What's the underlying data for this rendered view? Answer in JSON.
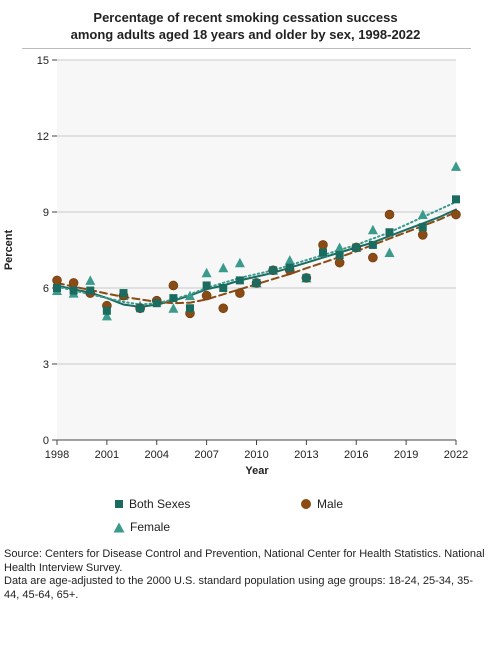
{
  "title_line1": "Percentage of recent smoking cessation success",
  "title_line2": "among adults aged 18 years and older by sex, 1998-2022",
  "chart_data": {
    "type": "scatter",
    "title": "Percentage of recent smoking cessation success among adults aged 18 years and older by sex, 1998-2022",
    "xlabel": "Year",
    "ylabel": "Percent",
    "xlim": [
      1998,
      2022
    ],
    "ylim": [
      0,
      15
    ],
    "x_ticks": [
      1998,
      2001,
      2004,
      2007,
      2010,
      2013,
      2016,
      2019,
      2022
    ],
    "y_ticks": [
      0,
      3,
      6,
      9,
      12,
      15
    ],
    "grid": true,
    "legend_position": "bottom",
    "series": [
      {
        "name": "Both Sexes",
        "marker": "square",
        "color": "#1a6b60",
        "trend_style": "solid",
        "x": [
          1998,
          1999,
          2000,
          2001,
          2002,
          2003,
          2004,
          2005,
          2006,
          2007,
          2008,
          2009,
          2010,
          2011,
          2012,
          2013,
          2014,
          2015,
          2016,
          2017,
          2018,
          2020,
          2022
        ],
        "values": [
          6.0,
          5.9,
          5.9,
          5.1,
          5.8,
          5.2,
          5.4,
          5.6,
          5.2,
          6.1,
          6.0,
          6.3,
          6.2,
          6.7,
          6.8,
          6.4,
          7.4,
          7.3,
          7.6,
          7.7,
          8.2,
          8.4,
          9.5
        ],
        "trend": [
          [
            1998,
            6.1
          ],
          [
            1999,
            5.95
          ],
          [
            2000,
            5.82
          ],
          [
            2001,
            5.6
          ],
          [
            2002,
            5.35
          ],
          [
            2003,
            5.25
          ],
          [
            2004,
            5.35
          ],
          [
            2005,
            5.5
          ],
          [
            2006,
            5.7
          ],
          [
            2007,
            5.95
          ],
          [
            2008,
            6.1
          ],
          [
            2009,
            6.3
          ],
          [
            2010,
            6.45
          ],
          [
            2011,
            6.6
          ],
          [
            2012,
            6.8
          ],
          [
            2013,
            7.0
          ],
          [
            2014,
            7.2
          ],
          [
            2015,
            7.4
          ],
          [
            2016,
            7.6
          ],
          [
            2017,
            7.8
          ],
          [
            2018,
            8.05
          ],
          [
            2019,
            8.3
          ],
          [
            2020,
            8.55
          ],
          [
            2021,
            8.8
          ],
          [
            2022,
            9.1
          ]
        ]
      },
      {
        "name": "Male",
        "marker": "circle",
        "color": "#8a4b14",
        "trend_style": "dashed",
        "x": [
          1998,
          1999,
          2000,
          2001,
          2002,
          2003,
          2004,
          2005,
          2006,
          2007,
          2008,
          2009,
          2010,
          2011,
          2012,
          2013,
          2014,
          2015,
          2016,
          2017,
          2018,
          2020,
          2022
        ],
        "values": [
          6.3,
          6.2,
          5.8,
          5.3,
          5.7,
          5.2,
          5.5,
          6.1,
          5.0,
          5.7,
          5.2,
          5.8,
          6.2,
          6.7,
          6.7,
          6.4,
          7.7,
          7.0,
          7.6,
          7.2,
          8.9,
          8.1,
          8.9
        ],
        "trend": [
          [
            1998,
            6.2
          ],
          [
            1999,
            6.05
          ],
          [
            2000,
            5.92
          ],
          [
            2001,
            5.78
          ],
          [
            2002,
            5.65
          ],
          [
            2003,
            5.55
          ],
          [
            2004,
            5.45
          ],
          [
            2005,
            5.4
          ],
          [
            2006,
            5.42
          ],
          [
            2007,
            5.55
          ],
          [
            2008,
            5.75
          ],
          [
            2009,
            5.95
          ],
          [
            2010,
            6.15
          ],
          [
            2011,
            6.35
          ],
          [
            2012,
            6.55
          ],
          [
            2013,
            6.78
          ],
          [
            2014,
            7.0
          ],
          [
            2015,
            7.22
          ],
          [
            2016,
            7.45
          ],
          [
            2017,
            7.7
          ],
          [
            2018,
            7.95
          ],
          [
            2019,
            8.2
          ],
          [
            2020,
            8.45
          ],
          [
            2021,
            8.7
          ],
          [
            2022,
            9.0
          ]
        ]
      },
      {
        "name": "Female",
        "marker": "triangle",
        "color": "#3a9a8c",
        "trend_style": "dotted",
        "x": [
          1998,
          1999,
          2000,
          2001,
          2002,
          2003,
          2004,
          2005,
          2006,
          2007,
          2008,
          2009,
          2010,
          2011,
          2012,
          2013,
          2014,
          2015,
          2016,
          2017,
          2018,
          2020,
          2022
        ],
        "values": [
          5.9,
          5.8,
          6.3,
          4.9,
          5.7,
          5.3,
          5.5,
          5.2,
          5.7,
          6.6,
          6.8,
          7.0,
          6.2,
          6.7,
          7.1,
          6.4,
          7.4,
          7.6,
          7.6,
          8.3,
          7.4,
          8.9,
          10.8
        ],
        "trend": [
          [
            1998,
            6.05
          ],
          [
            1999,
            5.9
          ],
          [
            2000,
            5.75
          ],
          [
            2001,
            5.6
          ],
          [
            2002,
            5.45
          ],
          [
            2003,
            5.35
          ],
          [
            2004,
            5.4
          ],
          [
            2005,
            5.55
          ],
          [
            2006,
            5.75
          ],
          [
            2007,
            6.0
          ],
          [
            2008,
            6.2
          ],
          [
            2009,
            6.4
          ],
          [
            2010,
            6.55
          ],
          [
            2011,
            6.7
          ],
          [
            2012,
            6.9
          ],
          [
            2013,
            7.1
          ],
          [
            2014,
            7.3
          ],
          [
            2015,
            7.5
          ],
          [
            2016,
            7.7
          ],
          [
            2017,
            7.95
          ],
          [
            2018,
            8.2
          ],
          [
            2019,
            8.5
          ],
          [
            2020,
            8.8
          ],
          [
            2021,
            9.1
          ],
          [
            2022,
            9.4
          ]
        ]
      }
    ]
  },
  "legend": [
    {
      "label": "Both Sexes",
      "marker": "square",
      "color": "#1a6b60"
    },
    {
      "label": "Male",
      "marker": "circle",
      "color": "#8a4b14"
    },
    {
      "label": "Female",
      "marker": "triangle",
      "color": "#3a9a8c"
    }
  ],
  "source_line1": "Source: Centers for Disease Control and Prevention, National Center for Health Statistics. National Health Interview Survey.",
  "source_line2": "Data are age-adjusted to the 2000 U.S. standard population using age groups: 18-24, 25-34, 35-44, 45-64, 65+."
}
